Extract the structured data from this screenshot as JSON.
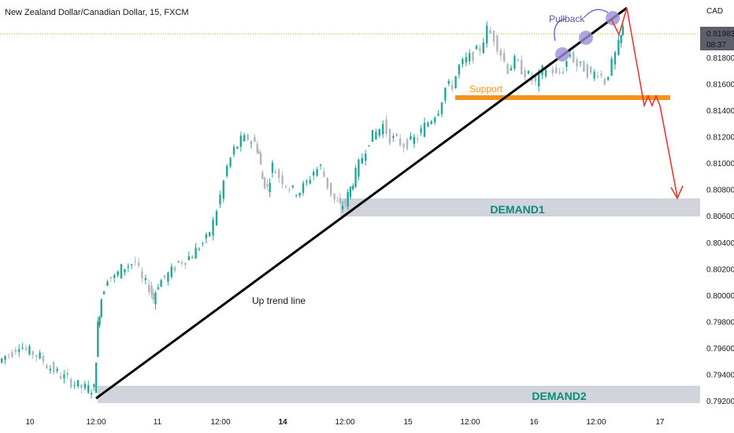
{
  "header": {
    "title": "New Zealand Dollar/Canadian Dollar, 15, FXCM",
    "currency": "CAD"
  },
  "price_tag": {
    "price": "0.81983",
    "countdown": "08:37"
  },
  "colors": {
    "up": "#26a69a",
    "down": "#b2b5be",
    "trendline": "#000000",
    "support": "#f7931a",
    "demand_zone": "#d1d4dc",
    "zone_text": "#0a8a7a",
    "projection": "#e53935",
    "pullback_marker": "#9c8fd4",
    "pullback_text": "#6a4fb0",
    "price_tag_bg": "#5d606b"
  },
  "chart_data": {
    "type": "line",
    "instrument": "New Zealand Dollar/Canadian Dollar, 15, FXCM",
    "x_ticks": [
      {
        "label": "10",
        "bold": false
      },
      {
        "label": "12:00",
        "bold": false
      },
      {
        "label": "11",
        "bold": false
      },
      {
        "label": "12:00",
        "bold": false
      },
      {
        "label": "14",
        "bold": true
      },
      {
        "label": "12:00",
        "bold": false
      },
      {
        "label": "15",
        "bold": false
      },
      {
        "label": "12:00",
        "bold": false
      },
      {
        "label": "16",
        "bold": false
      },
      {
        "label": "12:00",
        "bold": false
      },
      {
        "label": "17",
        "bold": false
      }
    ],
    "y_ticks": [
      "0.81800",
      "0.81600",
      "0.81400",
      "0.81200",
      "0.81000",
      "0.80800",
      "0.80600",
      "0.80400",
      "0.80200",
      "0.80000",
      "0.79800",
      "0.79600",
      "0.79400",
      "0.79200"
    ],
    "ylim": [
      0.7916,
      0.8221
    ],
    "price_path": [
      [
        0.0,
        0.7949
      ],
      [
        0.4,
        0.7954
      ],
      [
        0.8,
        0.7957
      ],
      [
        1.2,
        0.7963
      ],
      [
        1.6,
        0.7958
      ],
      [
        2.0,
        0.7956
      ],
      [
        2.4,
        0.7953
      ],
      [
        2.8,
        0.7947
      ],
      [
        3.2,
        0.7943
      ],
      [
        3.6,
        0.7939
      ],
      [
        4.0,
        0.7936
      ],
      [
        4.4,
        0.7933
      ],
      [
        4.8,
        0.793
      ],
      [
        5.2,
        0.7929
      ],
      [
        5.5,
        0.7929
      ],
      [
        5.7,
        0.7977
      ],
      [
        5.9,
        0.7998
      ],
      [
        6.3,
        0.8014
      ],
      [
        6.7,
        0.8013
      ],
      [
        7.1,
        0.802
      ],
      [
        7.5,
        0.8023
      ],
      [
        7.9,
        0.8025
      ],
      [
        8.3,
        0.8011
      ],
      [
        8.7,
        0.8006
      ],
      [
        8.9,
        0.7997
      ],
      [
        9.2,
        0.8009
      ],
      [
        9.6,
        0.8013
      ],
      [
        10.0,
        0.8018
      ],
      [
        10.4,
        0.8025
      ],
      [
        10.8,
        0.8027
      ],
      [
        11.2,
        0.8031
      ],
      [
        11.6,
        0.8037
      ],
      [
        12.0,
        0.8042
      ],
      [
        12.4,
        0.8055
      ],
      [
        12.8,
        0.8075
      ],
      [
        13.2,
        0.8097
      ],
      [
        13.6,
        0.811
      ],
      [
        14.0,
        0.8117
      ],
      [
        14.4,
        0.8119
      ],
      [
        14.8,
        0.8115
      ],
      [
        15.0,
        0.8107
      ],
      [
        15.2,
        0.8088
      ],
      [
        15.5,
        0.8081
      ],
      [
        15.8,
        0.8098
      ],
      [
        16.2,
        0.809
      ],
      [
        16.6,
        0.8084
      ],
      [
        17.0,
        0.8079
      ],
      [
        17.4,
        0.8079
      ],
      [
        17.8,
        0.8085
      ],
      [
        18.2,
        0.8094
      ],
      [
        18.6,
        0.8097
      ],
      [
        19.0,
        0.8083
      ],
      [
        19.4,
        0.8072
      ],
      [
        19.7,
        0.8067
      ],
      [
        20.0,
        0.807
      ],
      [
        20.3,
        0.8081
      ],
      [
        20.6,
        0.8092
      ],
      [
        21.0,
        0.8105
      ],
      [
        21.4,
        0.8118
      ],
      [
        21.8,
        0.8123
      ],
      [
        22.2,
        0.8129
      ],
      [
        22.6,
        0.8119
      ],
      [
        23.0,
        0.8117
      ],
      [
        23.4,
        0.8114
      ],
      [
        23.8,
        0.8116
      ],
      [
        24.2,
        0.812
      ],
      [
        24.6,
        0.8128
      ],
      [
        25.0,
        0.8134
      ],
      [
        25.4,
        0.8141
      ],
      [
        25.8,
        0.8157
      ],
      [
        26.2,
        0.8159
      ],
      [
        26.6,
        0.8173
      ],
      [
        27.0,
        0.8178
      ],
      [
        27.4,
        0.8182
      ],
      [
        27.8,
        0.8187
      ],
      [
        28.2,
        0.8201
      ],
      [
        28.6,
        0.8195
      ],
      [
        29.0,
        0.8183
      ],
      [
        29.4,
        0.8171
      ],
      [
        29.8,
        0.8177
      ],
      [
        30.2,
        0.8171
      ],
      [
        30.6,
        0.8166
      ],
      [
        31.0,
        0.816
      ],
      [
        31.4,
        0.817
      ],
      [
        31.8,
        0.8174
      ],
      [
        32.2,
        0.8166
      ],
      [
        32.6,
        0.8171
      ],
      [
        33.0,
        0.8183
      ],
      [
        33.4,
        0.8174
      ],
      [
        33.8,
        0.8172
      ],
      [
        34.2,
        0.8166
      ],
      [
        34.6,
        0.817
      ],
      [
        35.0,
        0.8162
      ],
      [
        35.4,
        0.8175
      ],
      [
        35.8,
        0.8189
      ],
      [
        36.0,
        0.8202
      ]
    ],
    "annotations": {
      "trend_label": "Up trend line",
      "support_label": "Support",
      "demand1_label": "DEMAND1",
      "demand2_label": "DEMAND2",
      "pullback_label": "Pullback"
    }
  }
}
